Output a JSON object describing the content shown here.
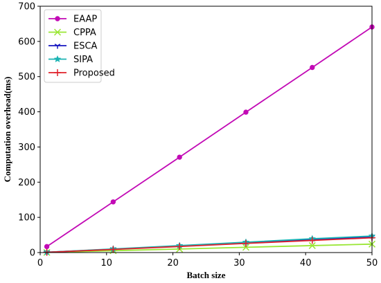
{
  "chart_data": {
    "type": "line",
    "title": "",
    "xlabel": "Batch size",
    "ylabel": "Computation overhead(ms)",
    "xlim": [
      0,
      50
    ],
    "ylim": [
      0,
      700
    ],
    "x_ticks": [
      "0",
      "10",
      "20",
      "30",
      "40",
      "50"
    ],
    "y_ticks": [
      "0",
      "100",
      "200",
      "300",
      "400",
      "500",
      "600",
      "700"
    ],
    "grid": false,
    "legend_position": "top-left",
    "x": [
      1,
      11,
      21,
      31,
      41,
      50
    ],
    "series": [
      {
        "name": "EAAP",
        "color": "#c20ab5",
        "marker": "circle",
        "values": [
          17,
          144,
          271,
          399,
          526,
          641
        ]
      },
      {
        "name": "CPPA",
        "color": "#99e633",
        "marker": "x",
        "values": [
          0.5,
          5.3,
          10,
          15,
          19.8,
          24
        ]
      },
      {
        "name": "ESCA",
        "color": "#1515c0",
        "marker": "tri_down",
        "values": [
          0.9,
          9.5,
          18.5,
          27.5,
          36.5,
          44
        ]
      },
      {
        "name": "SIPA",
        "color": "#1ab3b3",
        "marker": "star",
        "values": [
          1,
          10.3,
          19.8,
          29.5,
          39.2,
          47
        ]
      },
      {
        "name": "Proposed",
        "color": "#e0202a",
        "marker": "plus",
        "values": [
          0.8,
          8.8,
          17.2,
          26,
          34.5,
          42
        ]
      }
    ]
  }
}
